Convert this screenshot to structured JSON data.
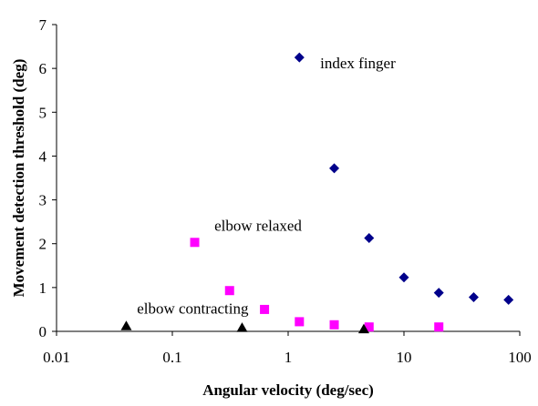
{
  "chart_data": {
    "type": "scatter",
    "title": "",
    "xlabel": "Angular velocity (deg/sec)",
    "ylabel": "Movement detection threshold (deg)",
    "xscale": "log",
    "xlim": [
      0.01,
      100
    ],
    "ylim": [
      0,
      7
    ],
    "xticks": [
      {
        "value": 0.01,
        "label": "0.01"
      },
      {
        "value": 0.1,
        "label": "0.1"
      },
      {
        "value": 1,
        "label": "1"
      },
      {
        "value": 10,
        "label": "10"
      },
      {
        "value": 100,
        "label": "100"
      }
    ],
    "yticks": [
      {
        "value": 0,
        "label": "0"
      },
      {
        "value": 1,
        "label": "1"
      },
      {
        "value": 2,
        "label": "2"
      },
      {
        "value": 3,
        "label": "3"
      },
      {
        "value": 4,
        "label": "4"
      },
      {
        "value": 5,
        "label": "5"
      },
      {
        "value": 6,
        "label": "6"
      },
      {
        "value": 7,
        "label": "7"
      }
    ],
    "grid": false,
    "series": [
      {
        "name": "index finger",
        "marker": "diamond",
        "color": "#00008B",
        "x": [
          1.25,
          2.5,
          5,
          10,
          20,
          40,
          80
        ],
        "y": [
          6.25,
          3.72,
          2.13,
          1.23,
          0.88,
          0.78,
          0.72
        ]
      },
      {
        "name": "elbow relaxed",
        "marker": "square",
        "color": "#FF00FF",
        "x": [
          0.156,
          0.312,
          0.625,
          1.25,
          2.5,
          5,
          20
        ],
        "y": [
          2.03,
          0.93,
          0.5,
          0.22,
          0.15,
          0.1,
          0.1
        ]
      },
      {
        "name": "elbow contracting",
        "marker": "triangle",
        "color": "#000000",
        "x": [
          0.04,
          0.4,
          4.5
        ],
        "y": [
          0.12,
          0.08,
          0.05
        ]
      }
    ],
    "annotations": [
      {
        "text": "index finger",
        "x": 4.0,
        "y": 6.0
      },
      {
        "text": "elbow relaxed",
        "x": 0.55,
        "y": 2.3
      },
      {
        "text": "elbow contracting",
        "x": 0.15,
        "y": 0.4
      }
    ]
  }
}
